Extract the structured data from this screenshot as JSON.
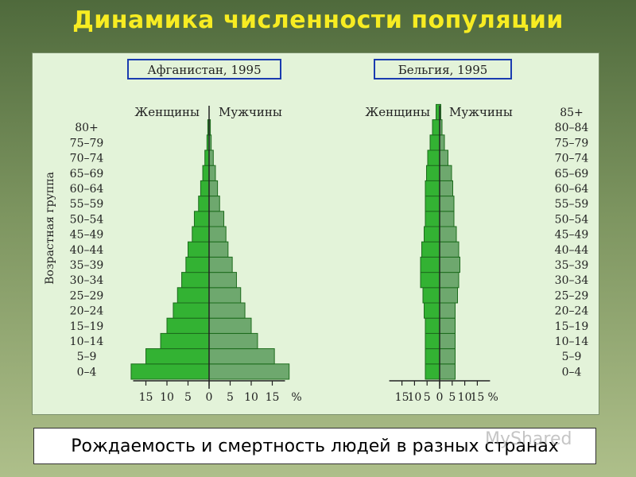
{
  "title": "Динамика численности популяции",
  "caption": "Рождаемость и смертность людей в разных странах",
  "watermark": "MyShared",
  "y_axis_label": "Возрастная группа",
  "colors": {
    "female": "#33b233",
    "male": "#6ea86e",
    "edge": "#1c6b1c",
    "title": "#f7ec22"
  },
  "chart_data": [
    {
      "type": "bar",
      "title": "Афганистан, 1995",
      "left_label": "Женщины",
      "right_label": "Мужчины",
      "categories": [
        "0–4",
        "5–9",
        "10–14",
        "15–19",
        "20–24",
        "25–29",
        "30–34",
        "35–39",
        "40–44",
        "45–49",
        "50–54",
        "55–59",
        "60–64",
        "65–69",
        "70–74",
        "75–79",
        "80+"
      ],
      "series": [
        {
          "name": "Женщины",
          "values": [
            18.5,
            15,
            11.5,
            10,
            8.5,
            7.5,
            6.5,
            5.5,
            5,
            4,
            3.5,
            2.5,
            2,
            1.5,
            1,
            0.5,
            0.3
          ]
        },
        {
          "name": "Мужчины",
          "values": [
            19,
            15.5,
            11.5,
            10,
            8.5,
            7.5,
            6.5,
            5.5,
            4.5,
            4,
            3.5,
            2.5,
            2,
            1.5,
            1,
            0.5,
            0.3
          ]
        }
      ],
      "xticks": [
        "15",
        "10",
        "5",
        "0",
        "5",
        "10",
        "15",
        "%"
      ],
      "xlim": [
        -20,
        20
      ]
    },
    {
      "type": "bar",
      "title": "Бельгия, 1995",
      "left_label": "Женщины",
      "right_label": "Мужчины",
      "categories": [
        "0–4",
        "5–9",
        "10–14",
        "15–19",
        "20–24",
        "25–29",
        "30–34",
        "35–39",
        "40–44",
        "45–49",
        "50–54",
        "55–59",
        "60–64",
        "65–69",
        "70–74",
        "75–79",
        "80–84",
        "85+"
      ],
      "series": [
        {
          "name": "Женщины",
          "values": [
            6,
            6,
            6,
            6,
            6.5,
            7,
            8,
            8,
            7.5,
            6.5,
            6,
            6,
            6,
            5.5,
            5,
            4,
            3,
            1.5
          ]
        },
        {
          "name": "Мужчины",
          "values": [
            6.5,
            6.5,
            6.5,
            6.5,
            6.5,
            7.5,
            8,
            8.5,
            8,
            7,
            6,
            6,
            5.5,
            5,
            3.5,
            2,
            1,
            0.5
          ]
        }
      ],
      "xticks": [
        "15",
        "10",
        "5",
        "0",
        "5",
        "10",
        "15",
        "%"
      ],
      "xlim": [
        -17,
        17
      ]
    }
  ]
}
